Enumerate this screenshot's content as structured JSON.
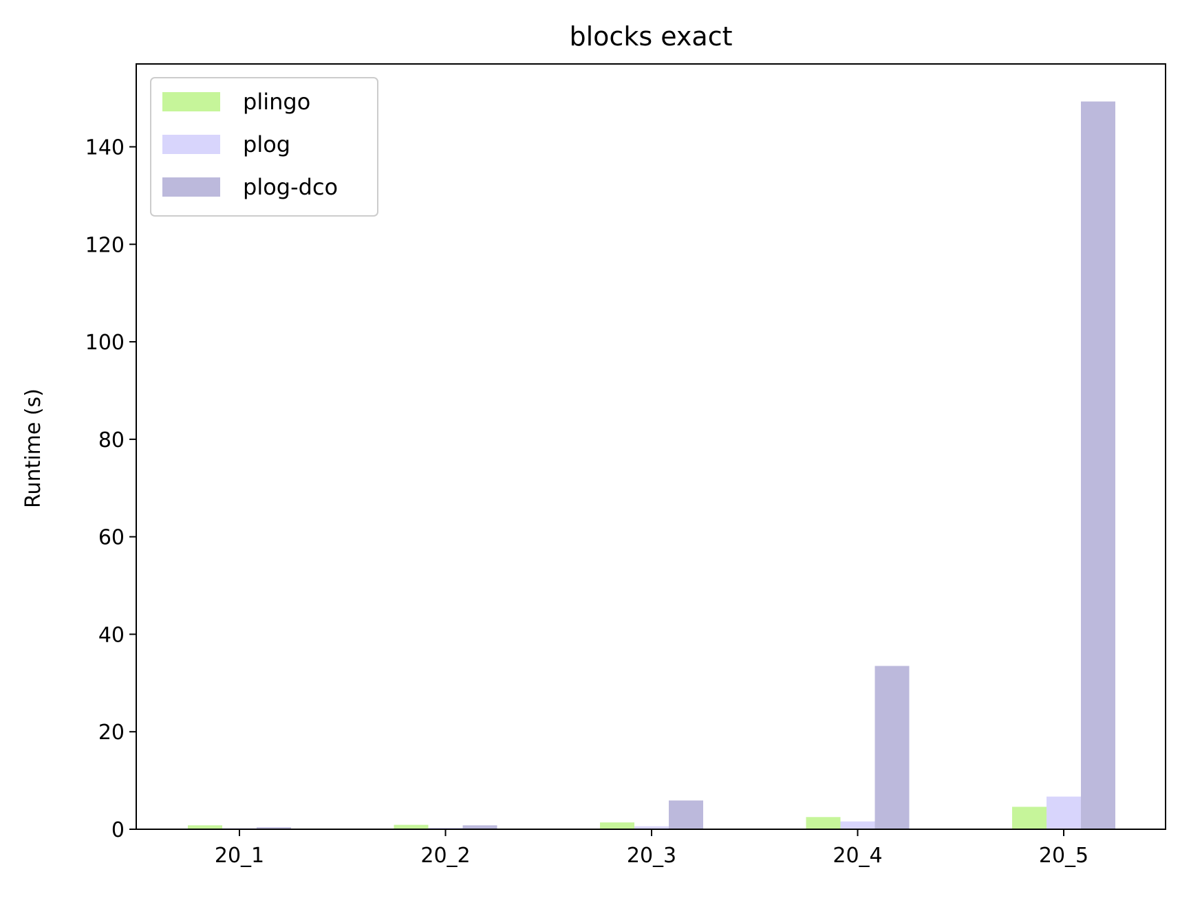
{
  "chart_data": {
    "type": "bar",
    "title": "blocks exact",
    "xlabel": "",
    "ylabel": "Runtime (s)",
    "categories": [
      "20_1",
      "20_2",
      "20_3",
      "20_4",
      "20_5"
    ],
    "series": [
      {
        "name": "plingo",
        "color": "#c6f59a",
        "values": [
          0.8,
          0.9,
          1.4,
          2.5,
          4.6
        ]
      },
      {
        "name": "plog",
        "color": "#d8d5fc",
        "values": [
          0.2,
          0.3,
          0.6,
          1.6,
          6.7
        ]
      },
      {
        "name": "plog-dco",
        "color": "#bcb9dc",
        "values": [
          0.4,
          0.8,
          5.9,
          33.5,
          149.3
        ]
      }
    ],
    "ylim": [
      0,
      157
    ],
    "yticks": [
      0,
      20,
      40,
      60,
      80,
      100,
      120,
      140
    ],
    "grid": false,
    "legend": {
      "position": "top-left"
    }
  }
}
